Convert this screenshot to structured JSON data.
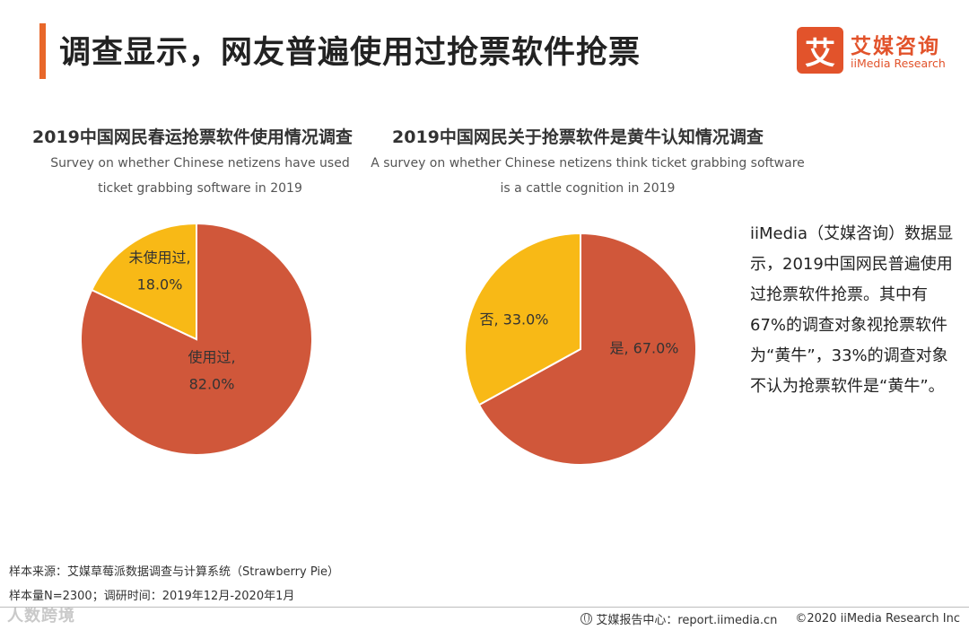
{
  "header": {
    "title": "调查显示，网友普遍使用过抢票软件抢票",
    "logo_mark": "艾",
    "logo_cn": "艾媒咨询",
    "logo_en": "iiMedia Research"
  },
  "chart_data": [
    {
      "type": "pie",
      "title": "2019中国网民春运抢票软件使用情况调查",
      "subtitle_line1": "Survey on whether Chinese netizens have used",
      "subtitle_line2": "ticket grabbing software in 2019",
      "slices": [
        {
          "name": "使用过",
          "value": 82.0,
          "label_line1": "使用过,",
          "label_line2": "82.0%",
          "color": "#d0573a"
        },
        {
          "name": "未使用过",
          "value": 18.0,
          "label_line1": "未使用过,",
          "label_line2": "18.0%",
          "color": "#f8b916"
        }
      ]
    },
    {
      "type": "pie",
      "title": "2019中国网民关于抢票软件是黄牛认知情况调查",
      "subtitle_line1": "A survey on whether Chinese netizens think ticket grabbing software",
      "subtitle_line2": "is a cattle cognition in 2019",
      "slices": [
        {
          "name": "是",
          "value": 67.0,
          "label_line1": "是, 67.0%",
          "label_line2": "",
          "color": "#d0573a"
        },
        {
          "name": "否",
          "value": 33.0,
          "label_line1": "否, 33.0%",
          "label_line2": "",
          "color": "#f8b916"
        }
      ]
    }
  ],
  "summary": {
    "text": "iiMedia（艾媒咨询）数据显示，2019中国网民普遍使用过抢票软件抢票。其中有67%的调查对象视抢票软件为“黄牛”，33%的调查对象不认为抢票软件是“黄牛”。"
  },
  "footer": {
    "source": "样本来源：艾媒草莓派数据调查与计算系统（Strawberry Pie）",
    "sample": "样本量N=2300；调研时间：2019年12月-2020年1月",
    "report_center": "艾媒报告中心：report.iimedia.cn",
    "copyright": "©2020  iiMedia Research  Inc",
    "watermark": "人数跨境"
  },
  "colors": {
    "accent": "#e8672a",
    "brand": "#e2532b",
    "slice_major": "#d0573a",
    "slice_minor": "#f8b916"
  }
}
